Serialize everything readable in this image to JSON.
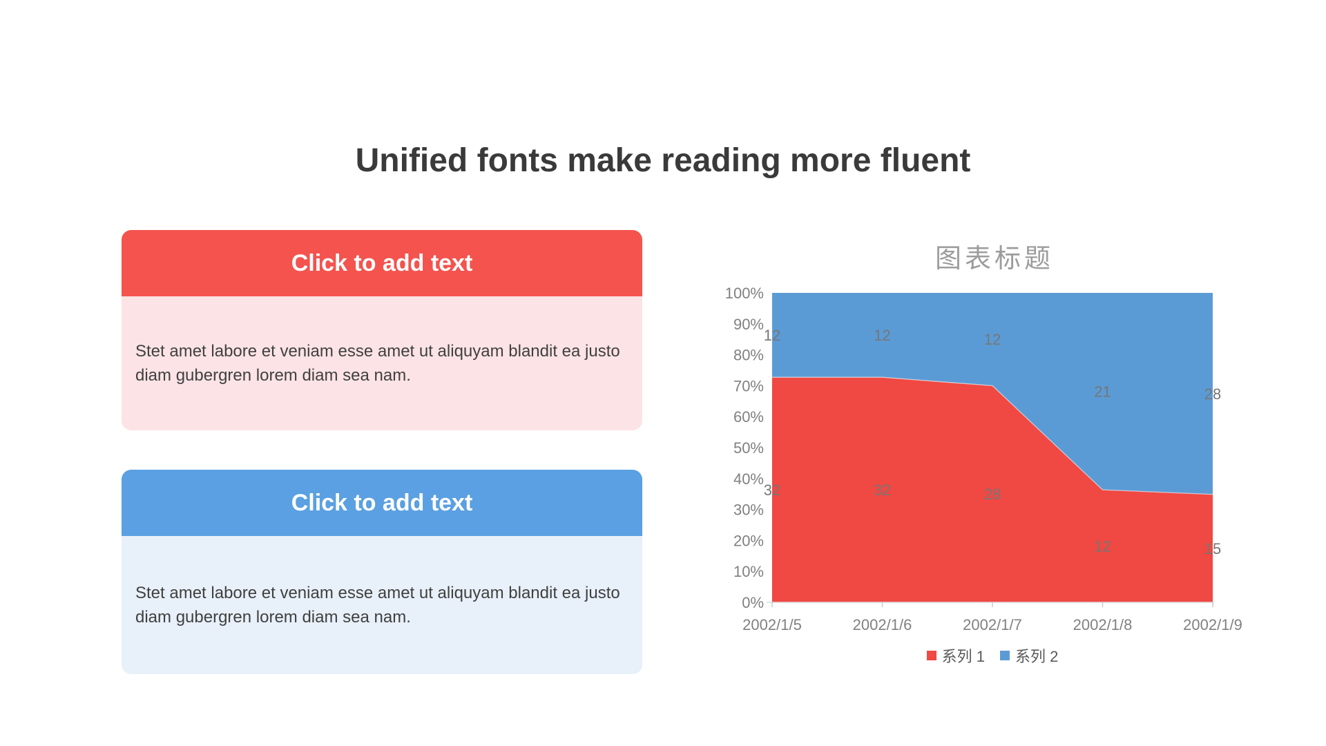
{
  "slide": {
    "title": "Unified fonts make reading more fluent"
  },
  "cards": [
    {
      "header": "Click to add text",
      "body": "Stet amet labore et veniam esse amet ut aliquyam blandit ea justo diam gubergren lorem diam sea nam.",
      "accent_color": "#F4534E",
      "tint_color": "#FCE3E5"
    },
    {
      "header": "Click to add text",
      "body": "Stet amet labore et veniam esse amet ut aliquyam blandit ea justo diam gubergren lorem diam sea nam.",
      "accent_color": "#5AA0E2",
      "tint_color": "#E8F0F9"
    }
  ],
  "chart_data": {
    "type": "area",
    "variant": "100-percent-stacked",
    "title": "图表标题",
    "categories": [
      "2002/1/5",
      "2002/1/6",
      "2002/1/7",
      "2002/1/8",
      "2002/1/9"
    ],
    "series": [
      {
        "name": "系列 1",
        "color": "#F04842",
        "values": [
          32,
          32,
          28,
          12,
          15
        ]
      },
      {
        "name": "系列 2",
        "color": "#5B9BD5",
        "values": [
          12,
          12,
          12,
          21,
          28
        ]
      }
    ],
    "y_axis_ticks": [
      "0%",
      "10%",
      "20%",
      "30%",
      "40%",
      "50%",
      "60%",
      "70%",
      "80%",
      "90%",
      "100%"
    ],
    "ylim": [
      0,
      100
    ],
    "gridlines": false,
    "legend_position": "bottom",
    "colors": {
      "title_text": "#9C9C9C",
      "axis_text": "#808080",
      "data_label_text": "#767676",
      "legend_text": "#595959",
      "axis_line": "#D9D9D9",
      "tick_mark": "#C9C9C9"
    }
  }
}
